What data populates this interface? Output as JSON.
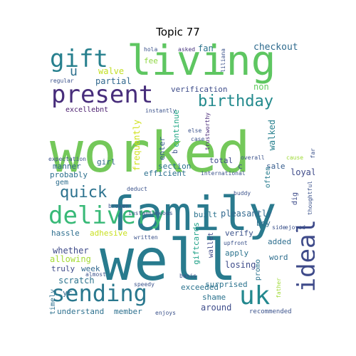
{
  "title": "Topic 77",
  "words": {
    "worked": "worked",
    "family": "family",
    "well": "well",
    "living": "living",
    "gift": "gift",
    "present": "present",
    "delivery": "delivery",
    "sending": "sending",
    "uk": "uk",
    "ideal": "ideal",
    "quick": "quick",
    "birthday": "birthday",
    "u": "u",
    "partial": "partial",
    "walve": "walve",
    "fee": "fee",
    "fan": "fan",
    "checkout": "checkout",
    "asked": "asked",
    "hola": "hola",
    "liliana": "liliana",
    "regular": "regular",
    "verification": "verification",
    "non": "non",
    "excellebnt": "excellebnt",
    "continue": "continue",
    "instantly": "instantly",
    "walked": "walked",
    "frequently": "frequently",
    "enter": "enter",
    "b": "b",
    "trustworthy": "trustworthy",
    "else": "else",
    "case": "case",
    "overall": "overall",
    "cause": "cause",
    "far": "far",
    "expectation": "expectation",
    "girl": "girl",
    "section": "section",
    "total": "total",
    "c": "c",
    "sale": "sale",
    "manner": "manner",
    "probably": "probably",
    "efficient": "efficient",
    "international": "international",
    "loyal": "loyal",
    "gem": "gem",
    "often": "often",
    "deduct": "deduct",
    "broken": "broken",
    "buddy": "buddy",
    "thoughtful": "thoughtful",
    "dig": "dig",
    "instantaneous": "instantaneous",
    "built": "built",
    "pleasantly": "pleasantly",
    "boy": "boy",
    "hassle": "hassle",
    "adhesive": "adhesive",
    "written": "written",
    "side": "side",
    "giftcards": "giftcards",
    "verify": "verify",
    "upfront": "upfront",
    "ejoyed": "ejoyed",
    "whether": "whether",
    "allowing": "allowing",
    "wallet": "wallet",
    "apply": "apply",
    "added": "added",
    "word": "word",
    "truly": "truly",
    "week": "week",
    "almost": "almost",
    "basis": "basis",
    "promo": "promo",
    "losing": "losing",
    "scratch": "scratch",
    "surprised": "surprised",
    "timely": "timely",
    "yr": "yr",
    "speedy": "speedy",
    "exceeded": "exceeded",
    "father": "father",
    "shame": "shame",
    "understand": "understand",
    "member": "member",
    "enjoys": "enjoys",
    "around": "around",
    "recommended": "recommended"
  },
  "colors": {
    "background": "#ffffff",
    "title": "#000000"
  }
}
